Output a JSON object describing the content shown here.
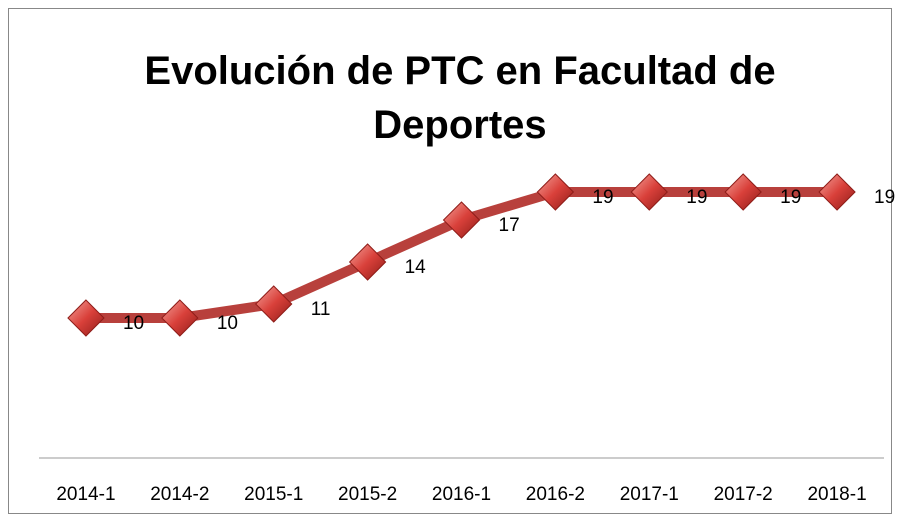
{
  "chart_data": {
    "type": "line",
    "title": "Evolución de PTC en Facultad de Deportes",
    "categories": [
      "2014-1",
      "2014-2",
      "2015-1",
      "2015-2",
      "2016-1",
      "2016-2",
      "2017-1",
      "2017-2",
      "2018-1"
    ],
    "values": [
      10,
      10,
      11,
      14,
      17,
      19,
      19,
      19,
      19
    ],
    "color": "#b8403c",
    "marker_color": "#d9403a",
    "ylim": [
      0,
      20
    ]
  }
}
